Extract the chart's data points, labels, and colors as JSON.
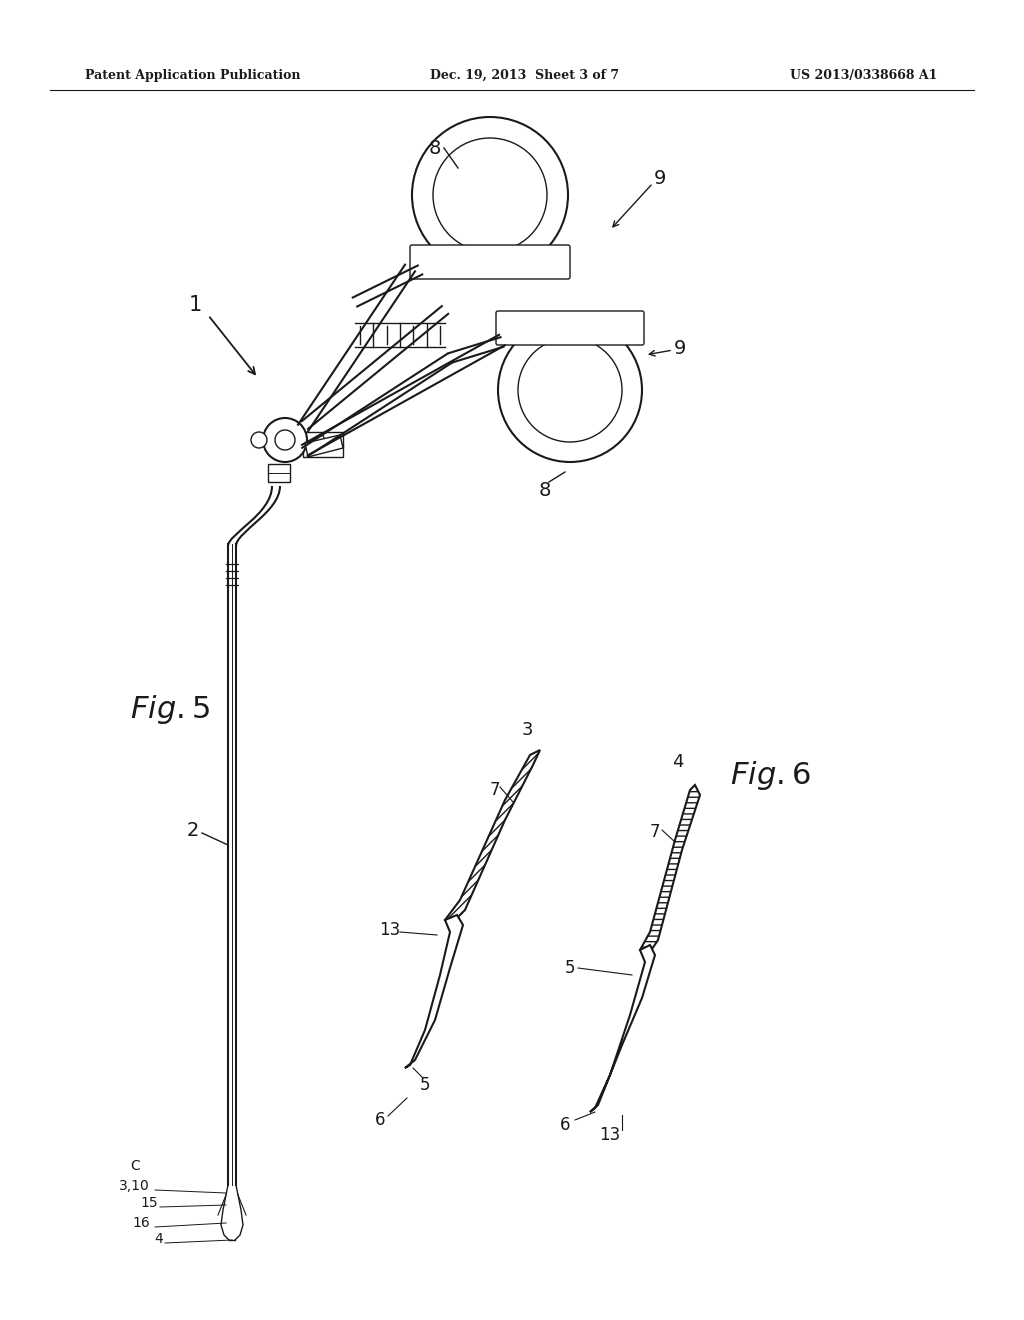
{
  "header_left": "Patent Application Publication",
  "header_mid": "Dec. 19, 2013  Sheet 3 of 7",
  "header_right": "US 2013/0338668 A1",
  "bg": "#ffffff",
  "lc": "#1a1a1a",
  "gray": "#888888",
  "fig5_label": "Fig. 5",
  "fig6_label": "Fig. 6"
}
